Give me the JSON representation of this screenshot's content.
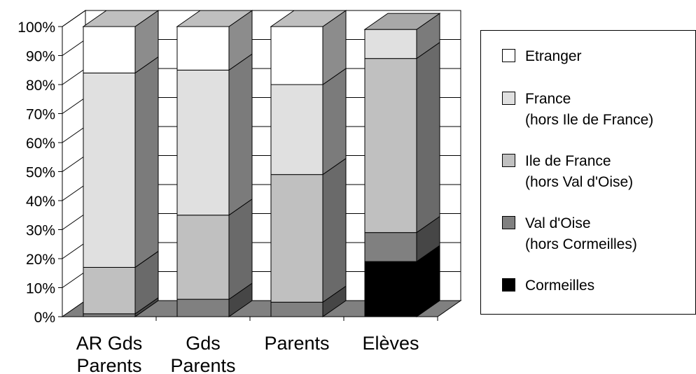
{
  "chart_data": {
    "type": "bar",
    "stacked": true,
    "three_d": true,
    "percent": true,
    "categories": [
      [
        "AR Gds",
        "Parents"
      ],
      [
        "Gds",
        "Parents"
      ],
      [
        "Parents"
      ],
      [
        "Elèves"
      ]
    ],
    "series": [
      {
        "name": "Cormeilles",
        "color": "#000000",
        "values": [
          0,
          0,
          0,
          19
        ]
      },
      {
        "name": "Val d'Oise\n(hors Cormeilles)",
        "color": "#808080",
        "values": [
          1,
          6,
          5,
          10
        ]
      },
      {
        "name": "Ile de France\n(hors Val d'Oise)",
        "color": "#c0c0c0",
        "values": [
          16,
          29,
          44,
          60
        ]
      },
      {
        "name": "France\n(hors Ile de France)",
        "color": "#e0e0e0",
        "values": [
          67,
          50,
          31,
          10
        ]
      },
      {
        "name": "Etranger",
        "color": "#ffffff",
        "values": [
          16,
          15,
          20,
          0
        ]
      }
    ],
    "ylim": [
      0,
      100
    ],
    "yticks": [
      "0%",
      "10%",
      "20%",
      "30%",
      "40%",
      "50%",
      "60%",
      "70%",
      "80%",
      "90%",
      "100%"
    ],
    "grid": true,
    "legend_position": "right",
    "title": "",
    "xlabel": "",
    "ylabel": ""
  },
  "legend_order": [
    4,
    3,
    2,
    1,
    0
  ]
}
